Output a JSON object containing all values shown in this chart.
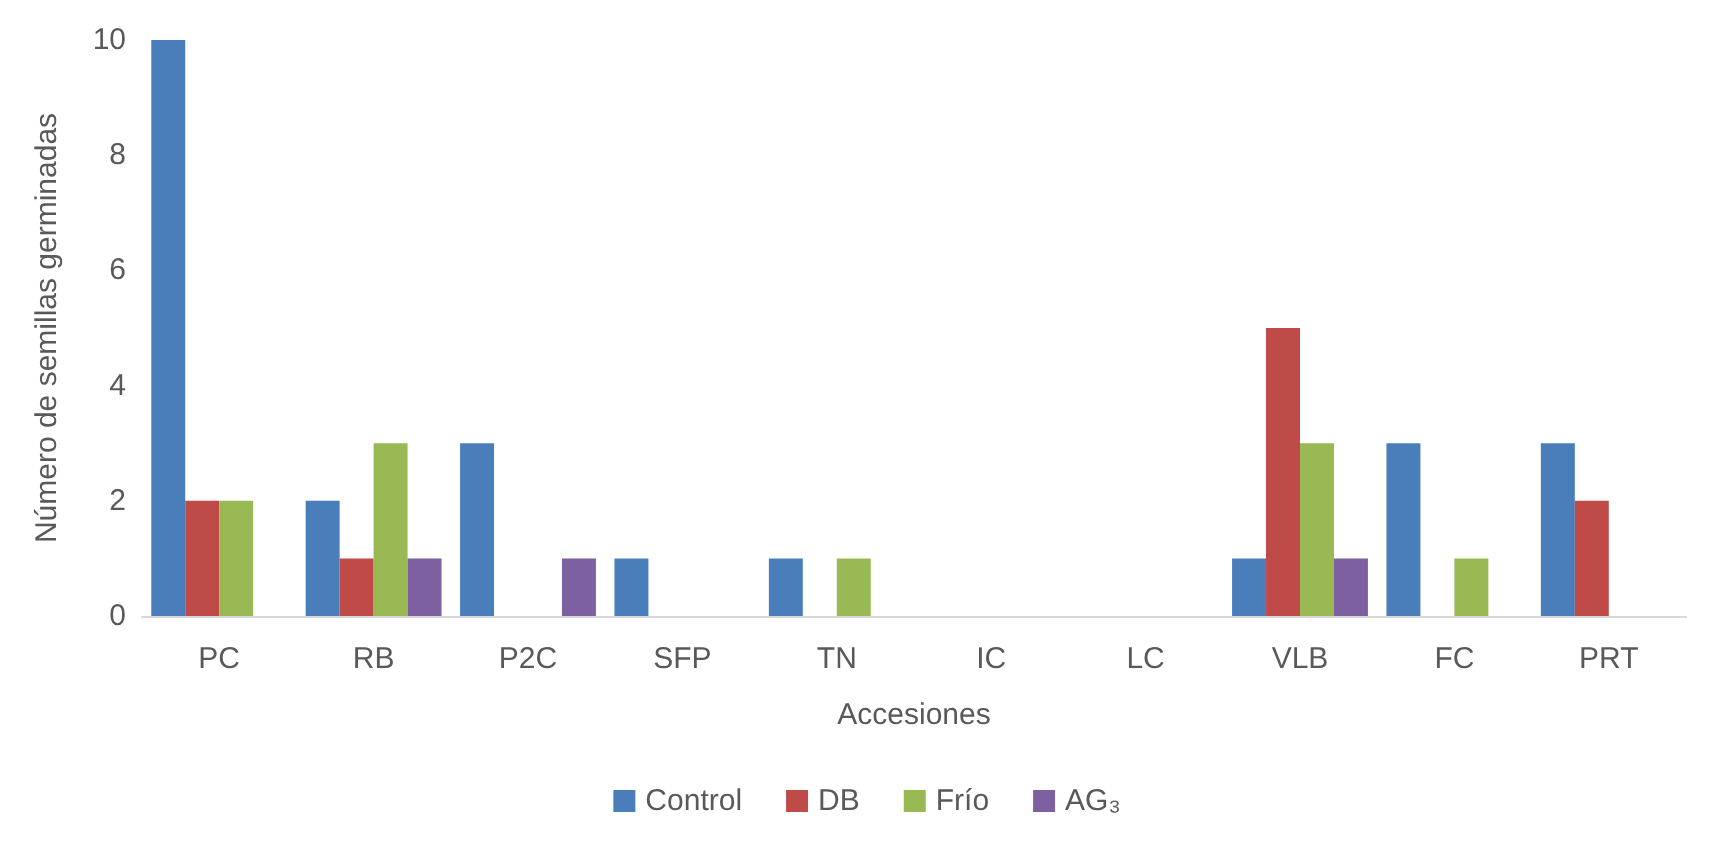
{
  "chart_data": {
    "type": "bar",
    "xlabel": "Accesiones",
    "ylabel": "Número de semillas germinadas",
    "categories": [
      "PC",
      "RB",
      "P2C",
      "SFP",
      "TN",
      "IC",
      "LC",
      "VLB",
      "FC",
      "PRT"
    ],
    "series": [
      {
        "name": "Control",
        "color": "#4a7ebb",
        "values": [
          10,
          2,
          3,
          1,
          1,
          0,
          0,
          1,
          3,
          3
        ]
      },
      {
        "name": "DB",
        "color": "#be4b48",
        "values": [
          2,
          1,
          0,
          0,
          0,
          0,
          0,
          5,
          0,
          2
        ]
      },
      {
        "name": "Frío",
        "color": "#98b954",
        "values": [
          2,
          3,
          0,
          0,
          1,
          0,
          0,
          3,
          1,
          0
        ]
      },
      {
        "name": "AG₃",
        "color": "#7d60a0",
        "values": [
          0,
          1,
          1,
          0,
          0,
          0,
          0,
          1,
          0,
          0
        ]
      }
    ],
    "ylim": [
      0,
      10
    ],
    "yticks": [
      0,
      2,
      4,
      6,
      8,
      10
    ],
    "grid": false,
    "legend": "bottom"
  }
}
